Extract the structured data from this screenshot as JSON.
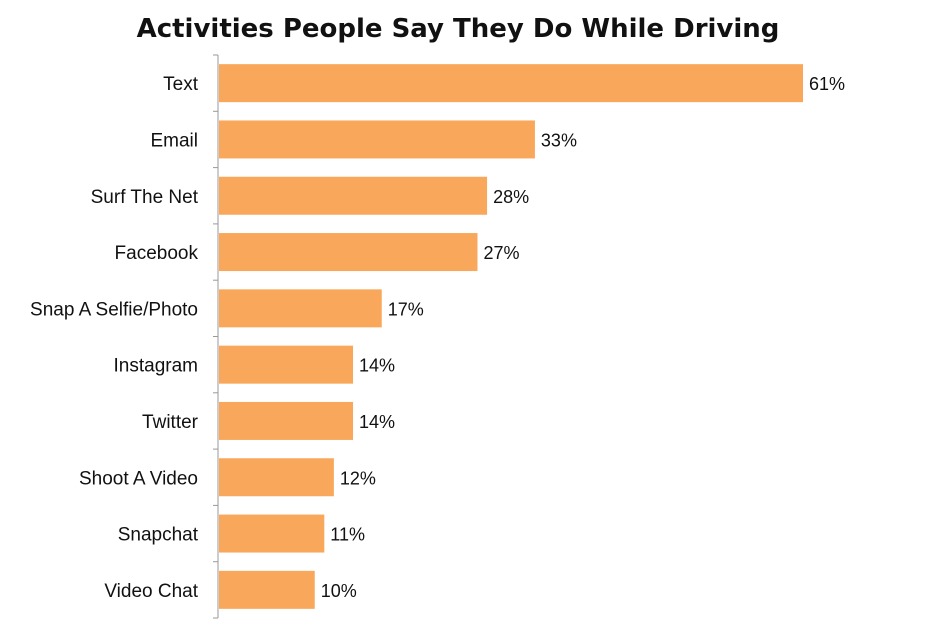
{
  "chart_data": {
    "type": "bar",
    "orientation": "horizontal",
    "title": "Activities People Say They Do While Driving",
    "categories": [
      "Text",
      "Email",
      "Surf The Net",
      "Facebook",
      "Snap A Selfie/Photo",
      "Instagram",
      "Twitter",
      "Shoot A Video",
      "Snapchat",
      "Video Chat"
    ],
    "values": [
      61,
      33,
      28,
      27,
      17,
      14,
      14,
      12,
      11,
      10
    ],
    "value_labels": [
      "61%",
      "33%",
      "28%",
      "27%",
      "17%",
      "14%",
      "14%",
      "12%",
      "11%",
      "10%"
    ],
    "xlim": [
      0,
      61
    ],
    "grid": false,
    "legend": "none",
    "colors": {
      "bar": "#F9A85B",
      "axis": "#999999",
      "text": "#111111"
    }
  }
}
